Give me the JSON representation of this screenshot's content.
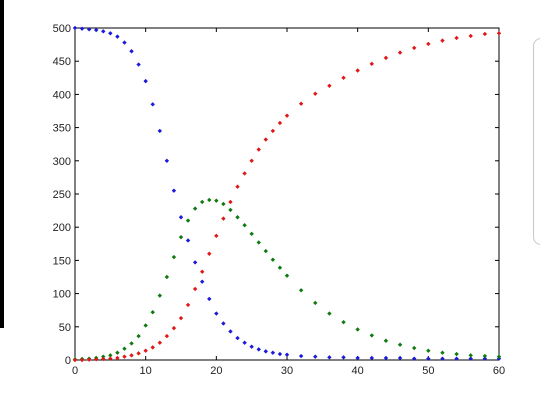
{
  "chart_data": {
    "type": "scatter",
    "title": "",
    "xlabel": "",
    "ylabel": "",
    "xlim": [
      0,
      60
    ],
    "ylim": [
      0,
      500
    ],
    "grid": false,
    "legend": "none",
    "x_ticks": [
      "0",
      "10",
      "20",
      "30",
      "40",
      "50",
      "60"
    ],
    "y_ticks": [
      "0",
      "50",
      "100",
      "150",
      "200",
      "250",
      "300",
      "350",
      "400",
      "450",
      "500"
    ],
    "series": [
      {
        "color": "#1a1adc",
        "x": [
          0,
          1,
          2,
          3,
          4,
          5,
          6,
          7,
          8,
          9,
          10,
          11,
          12,
          13,
          14,
          15,
          16,
          17,
          18,
          19,
          20,
          21,
          22,
          23,
          24,
          25,
          26,
          27,
          28,
          29,
          30,
          32,
          34,
          36,
          38,
          40,
          42,
          44,
          46,
          48,
          50,
          52,
          54,
          56,
          58,
          60
        ],
        "y": [
          500,
          499,
          498,
          497,
          495,
          492,
          487,
          478,
          465,
          445,
          420,
          385,
          345,
          300,
          255,
          215,
          180,
          147,
          118,
          92,
          70,
          55,
          43,
          33,
          26,
          20,
          16,
          13,
          11,
          9,
          8,
          6,
          5,
          4,
          4,
          3,
          3,
          3,
          3,
          2,
          2,
          2,
          2,
          2,
          2,
          2
        ]
      },
      {
        "color": "#0f7a0f",
        "x": [
          0,
          1,
          2,
          3,
          4,
          5,
          6,
          7,
          8,
          9,
          10,
          11,
          12,
          13,
          14,
          15,
          16,
          17,
          18,
          19,
          20,
          21,
          22,
          23,
          24,
          25,
          26,
          27,
          28,
          29,
          30,
          32,
          34,
          36,
          38,
          40,
          42,
          44,
          46,
          48,
          50,
          52,
          54,
          56,
          58,
          60
        ],
        "y": [
          1,
          1.5,
          2,
          3,
          5,
          7,
          11,
          17,
          25,
          36,
          52,
          72,
          97,
          125,
          155,
          185,
          210,
          228,
          238,
          241,
          240,
          235,
          226,
          215,
          203,
          190,
          177,
          164,
          151,
          139,
          127,
          105,
          86,
          70,
          57,
          46,
          37,
          29,
          23,
          18,
          14,
          11,
          9,
          7,
          6,
          5
        ]
      },
      {
        "color": "#e01818",
        "x": [
          0,
          1,
          2,
          3,
          4,
          5,
          6,
          7,
          8,
          9,
          10,
          11,
          12,
          13,
          14,
          15,
          16,
          17,
          18,
          19,
          20,
          21,
          22,
          23,
          24,
          25,
          26,
          27,
          28,
          29,
          30,
          32,
          34,
          36,
          38,
          40,
          42,
          44,
          46,
          48,
          50,
          52,
          54,
          56,
          58,
          60
        ],
        "y": [
          0,
          0,
          0.5,
          1,
          1.5,
          2,
          3,
          5,
          7,
          10,
          14,
          19,
          26,
          36,
          48,
          63,
          83,
          107,
          133,
          160,
          187,
          213,
          238,
          261,
          281,
          300,
          317,
          332,
          345,
          357,
          368,
          386,
          401,
          413,
          425,
          436,
          446,
          455,
          463,
          470,
          476,
          481,
          485,
          488,
          491,
          492
        ]
      }
    ]
  }
}
